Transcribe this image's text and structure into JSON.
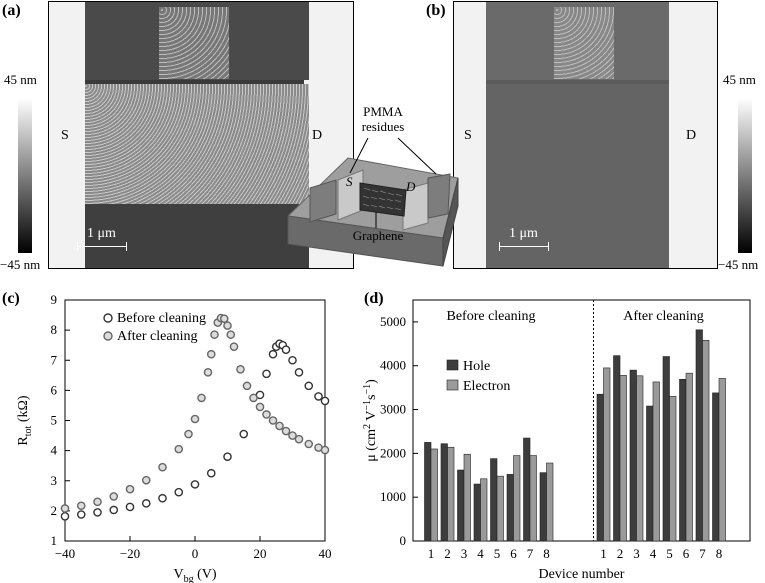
{
  "panels": {
    "a": {
      "label": "(a)",
      "scale_top": "45 nm",
      "scale_bottom": "−45 nm",
      "source_label": "S",
      "drain_label": "D",
      "scalebar_label": "1 μm"
    },
    "b": {
      "label": "(b)",
      "scale_top": "45 nm",
      "scale_bottom": "−45 nm",
      "source_label": "S",
      "drain_label": "D",
      "scalebar_label": "1 μm"
    },
    "inset": {
      "residue_label": "PMMA\nresidues",
      "residue_line1": "PMMA",
      "residue_line2": "residues",
      "s_label": "S",
      "d_label": "D",
      "graphene_label": "Graphene"
    }
  },
  "colors": {
    "afm_dark": "#3a3a3a",
    "afm_mid": "#5c5c5c",
    "bar_hole": "#3d3d3d",
    "bar_electron": "#9a9a9a"
  },
  "chart_data": [
    {
      "panel": "(c)",
      "type": "scatter",
      "xlabel_main": "V",
      "xlabel_sub": "bg",
      "xlabel_unit": " (V)",
      "ylabel_main": "R",
      "ylabel_sub": "tot",
      "ylabel_unit": " (kΩ)",
      "xlim": [
        -40,
        40
      ],
      "ylim": [
        1,
        9
      ],
      "xticks": [
        -40,
        -20,
        0,
        20,
        40
      ],
      "yticks": [
        1,
        2,
        3,
        4,
        5,
        6,
        7,
        8,
        9
      ],
      "xtick_labels": [
        "−40",
        "−20",
        "0",
        "20",
        "40"
      ],
      "legend_position": "top-left",
      "series": [
        {
          "name": "Before cleaning",
          "x": [
            -40,
            -35,
            -30,
            -25,
            -20,
            -15,
            -10,
            -5,
            0,
            5,
            10,
            15,
            20,
            22,
            24,
            25,
            26,
            27,
            28,
            30,
            32,
            35,
            38,
            40
          ],
          "y": [
            1.82,
            1.88,
            1.95,
            2.03,
            2.13,
            2.25,
            2.42,
            2.62,
            2.88,
            3.25,
            3.8,
            4.55,
            5.85,
            6.55,
            7.2,
            7.45,
            7.55,
            7.5,
            7.35,
            7.0,
            6.6,
            6.15,
            5.8,
            5.65
          ]
        },
        {
          "name": "After cleaning",
          "x": [
            -40,
            -35,
            -30,
            -25,
            -20,
            -15,
            -10,
            -5,
            -2,
            0,
            2,
            4,
            5,
            6,
            7,
            8,
            9,
            10,
            11,
            12,
            14,
            16,
            18,
            20,
            22,
            24,
            26,
            28,
            30,
            32,
            35,
            38,
            40
          ],
          "y": [
            2.08,
            2.17,
            2.3,
            2.48,
            2.72,
            3.02,
            3.45,
            4.05,
            4.55,
            5.05,
            5.75,
            6.6,
            7.2,
            7.85,
            8.25,
            8.4,
            8.38,
            8.15,
            7.85,
            7.45,
            6.7,
            6.15,
            5.75,
            5.45,
            5.2,
            5.0,
            4.82,
            4.65,
            4.5,
            4.38,
            4.22,
            4.1,
            4.02
          ]
        }
      ]
    },
    {
      "panel": "(d)",
      "type": "bar",
      "xlabel": "Device number",
      "ylabel_main": "μ (cm",
      "ylabel_sup1": "2",
      "ylabel_mid": " V",
      "ylabel_sup2": "−1",
      "ylabel_mid2": "s",
      "ylabel_sup3": "−1",
      "ylabel_end": ")",
      "ylim": [
        0,
        5500
      ],
      "yticks": [
        0,
        1000,
        2000,
        3000,
        4000,
        5000
      ],
      "group_labels": [
        "Before cleaning",
        "After cleaning"
      ],
      "legend_position": "left",
      "categories": [
        "1",
        "2",
        "3",
        "4",
        "5",
        "6",
        "7",
        "8"
      ],
      "groups": [
        {
          "name": "Before cleaning",
          "series": [
            {
              "name": "Hole",
              "values": [
                2250,
                2220,
                1620,
                1300,
                1880,
                1520,
                2350,
                1560
              ]
            },
            {
              "name": "Electron",
              "values": [
                2100,
                2140,
                1980,
                1420,
                1480,
                1950,
                1950,
                1780
              ]
            }
          ]
        },
        {
          "name": "After cleaning",
          "series": [
            {
              "name": "Hole",
              "values": [
                3350,
                4230,
                3900,
                3080,
                4210,
                3690,
                4820,
                3380
              ]
            },
            {
              "name": "Electron",
              "values": [
                3950,
                3780,
                3770,
                3630,
                3300,
                3830,
                4580,
                3710
              ]
            }
          ]
        }
      ]
    }
  ]
}
